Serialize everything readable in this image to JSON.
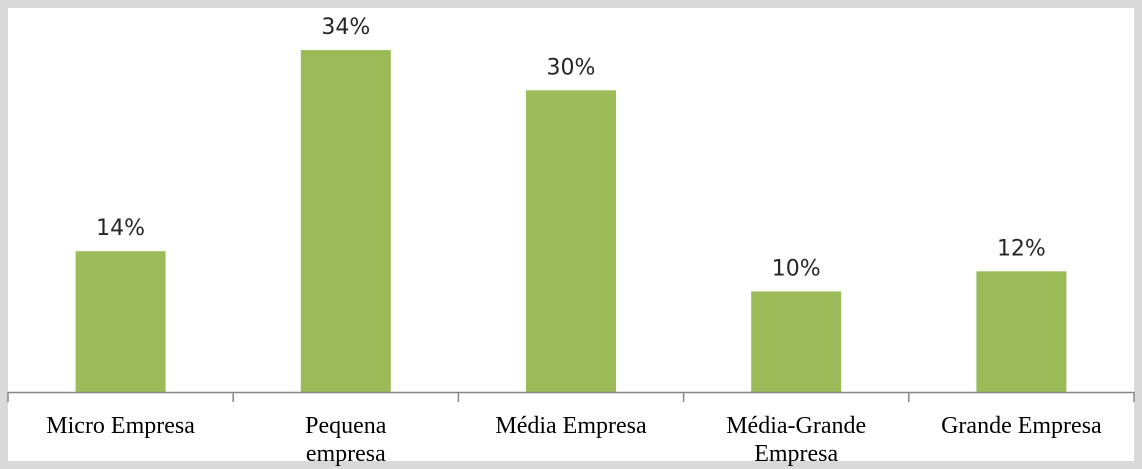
{
  "chart_data": {
    "type": "bar",
    "title": "",
    "xlabel": "",
    "ylabel": "",
    "ylim": [
      0,
      35
    ],
    "grid": false,
    "legend": "none",
    "categories": [
      [
        "Micro Empresa"
      ],
      [
        "Pequena",
        "empresa"
      ],
      [
        "Média Empresa"
      ],
      [
        "Média-Grande",
        "Empresa"
      ],
      [
        "Grande Empresa"
      ]
    ],
    "values": [
      14,
      34,
      30,
      10,
      12
    ],
    "data_labels": [
      "14%",
      "34%",
      "30%",
      "10%",
      "12%"
    ],
    "colors": {
      "bar": "#9bbb59",
      "axis": "#868686",
      "background": "#ffffff",
      "frame": "#d9d9d9"
    }
  }
}
